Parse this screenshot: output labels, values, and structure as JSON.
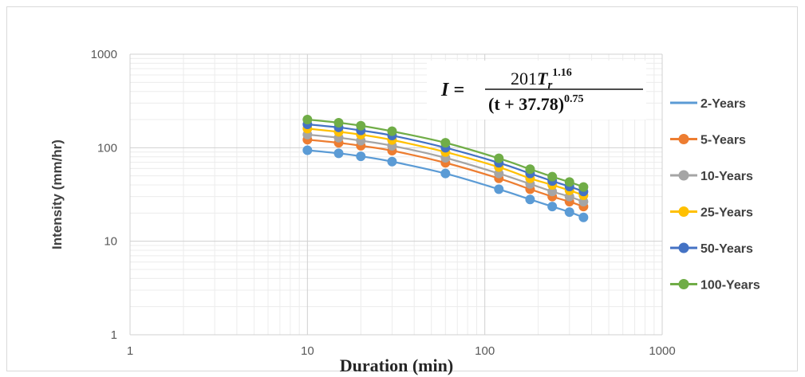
{
  "chart_data": {
    "type": "line",
    "xscale": "log",
    "yscale": "log",
    "xlim": [
      1,
      1000
    ],
    "ylim": [
      1,
      1000
    ],
    "xlabel": "Duration (min)",
    "ylabel": "Intensity (mm/hr)",
    "x_ticks": [
      "1",
      "10",
      "100",
      "1000"
    ],
    "y_ticks": [
      "1",
      "10",
      "100",
      "1000"
    ],
    "grid": true,
    "legend_position": "right",
    "x": [
      10,
      15,
      20,
      30,
      60,
      120,
      180,
      240,
      300,
      360
    ],
    "series": [
      {
        "name": "2-Years",
        "color": "#5b9bd5",
        "marker": false,
        "values": [
          94,
          87,
          81,
          71,
          53,
          36,
          28,
          23.5,
          20.5,
          18
        ]
      },
      {
        "name": "5-Years",
        "color": "#ed7d31",
        "marker": true,
        "values": [
          122,
          113,
          105,
          93,
          69,
          47,
          36,
          30,
          26.5,
          23.5
        ]
      },
      {
        "name": "10-Years",
        "color": "#a5a5a5",
        "marker": true,
        "values": [
          138,
          128,
          119,
          105,
          78,
          53,
          41,
          34,
          30,
          26.5
        ]
      },
      {
        "name": "25-Years",
        "color": "#ffc000",
        "marker": true,
        "values": [
          160,
          148,
          138,
          121,
          90,
          62,
          47,
          40,
          35,
          31
        ]
      },
      {
        "name": "50-Years",
        "color": "#4472c4",
        "marker": true,
        "values": [
          178,
          165,
          153,
          135,
          100,
          69,
          53,
          44,
          38.5,
          34
        ]
      },
      {
        "name": "100-Years",
        "color": "#70ad47",
        "marker": true,
        "values": [
          200,
          185,
          172,
          150,
          113,
          77,
          59,
          49,
          43,
          38
        ]
      }
    ],
    "annotation": {
      "lhs": "I =",
      "numerator_coef": "201",
      "numerator_var": "T",
      "numerator_sub": "r",
      "numerator_exp": "1.16",
      "denominator_base": "(t + 37.78)",
      "denominator_exp": "0.75"
    }
  }
}
